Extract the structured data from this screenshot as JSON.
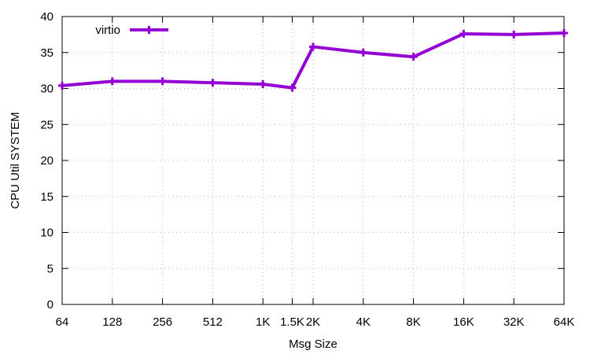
{
  "chart_data": {
    "type": "line",
    "title": "",
    "xlabel": "Msg Size",
    "ylabel": "CPU Util SYSTEM",
    "x_tick_labels": [
      "64",
      "128",
      "256",
      "512",
      "1K",
      "1.5K",
      "2K",
      "4K",
      "8K",
      "16K",
      "32K",
      "64K"
    ],
    "x_values": [
      64,
      128,
      256,
      512,
      1024,
      1536,
      2048,
      4096,
      8192,
      16384,
      32768,
      65536
    ],
    "x_scale": "log2",
    "ylim": [
      0,
      40
    ],
    "y_ticks": [
      0,
      5,
      10,
      15,
      20,
      25,
      30,
      35,
      40
    ],
    "grid": true,
    "legend_position": "top-left",
    "series": [
      {
        "name": "virtio",
        "color": "#9400d3",
        "marker": "plus",
        "values": [
          30.4,
          31.0,
          31.0,
          30.8,
          30.6,
          30.1,
          35.8,
          35.0,
          34.4,
          37.6,
          37.5,
          37.7
        ]
      }
    ]
  }
}
